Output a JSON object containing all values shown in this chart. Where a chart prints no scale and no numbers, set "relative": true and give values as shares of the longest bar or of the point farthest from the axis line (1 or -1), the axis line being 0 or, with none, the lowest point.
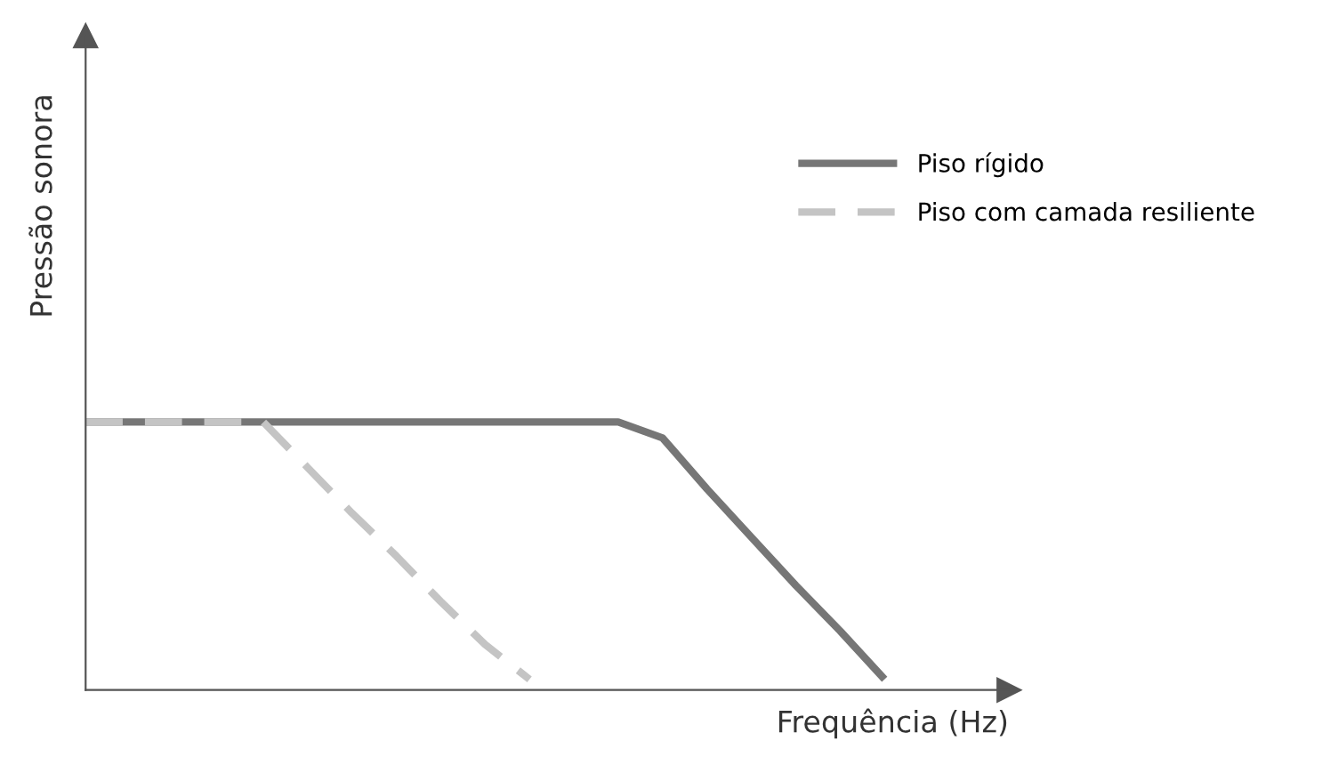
{
  "chart_data": {
    "type": "line",
    "relative": true,
    "xlabel": "Frequência (Hz)",
    "ylabel": "Pressão sonora",
    "legend": "top right",
    "grid": false,
    "marker": "none",
    "categories": [
      null,
      null,
      null,
      null,
      null,
      null,
      null,
      null,
      null,
      null,
      null,
      null,
      null,
      null,
      null,
      null,
      null,
      null,
      null,
      null,
      null
    ],
    "series": [
      {
        "name": "Piso rígido",
        "color": "#767676",
        "line_style": "solid",
        "values": [
          1,
          1,
          1,
          1,
          1,
          1,
          1,
          1,
          1,
          1,
          1,
          1,
          1,
          0.94,
          0.75,
          0.57,
          0.39,
          0.22,
          0.04,
          null,
          null
        ]
      },
      {
        "name": "Piso com camada resiliente",
        "color": "#c4c4c4",
        "line_style": "dashed",
        "values": [
          1,
          1,
          1,
          1,
          1,
          0.83,
          0.66,
          0.5,
          0.33,
          0.17,
          0.04,
          null,
          null,
          null,
          null,
          null,
          null,
          null,
          null,
          null,
          null
        ]
      }
    ]
  }
}
